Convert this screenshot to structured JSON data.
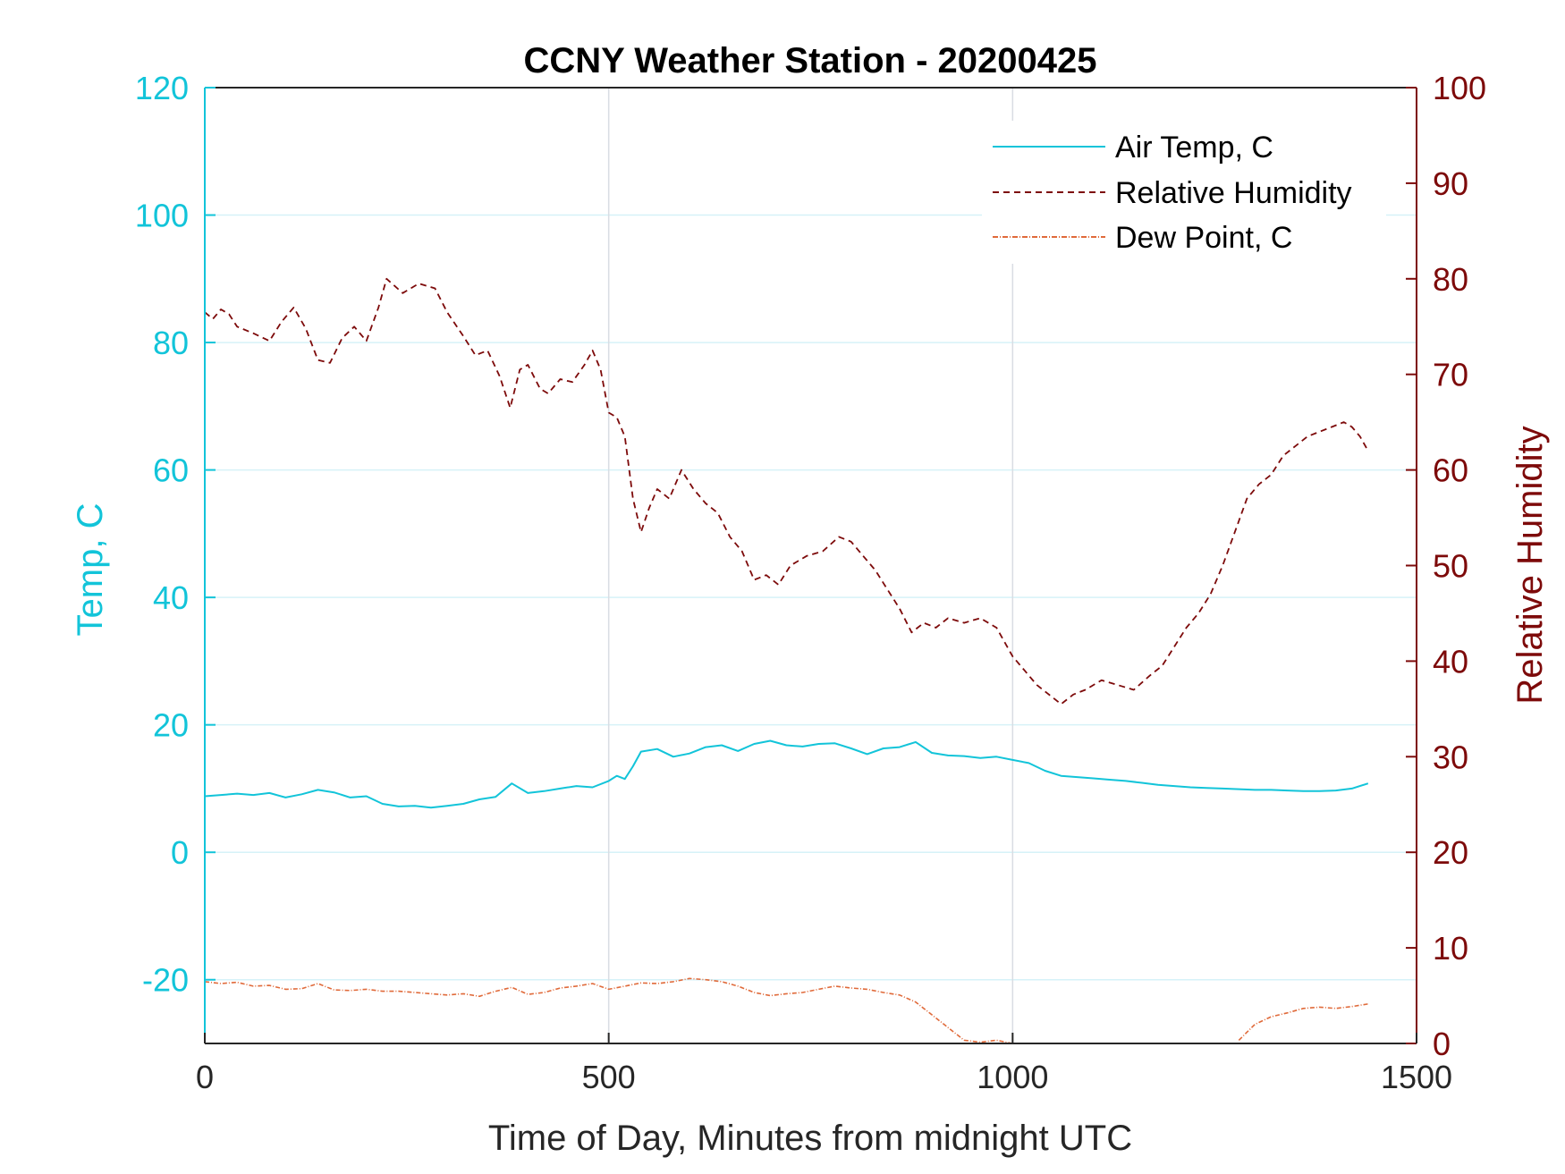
{
  "chart_data": {
    "type": "line",
    "title": "CCNY Weather Station - 20200425",
    "xlabel": "Time of Day, Minutes from midnight UTC",
    "ylabel_left": "Temp, C",
    "ylabel_right": "Relative Humidity",
    "xlim": [
      0,
      1500
    ],
    "ylim_left": [
      -30,
      120
    ],
    "ylim_right": [
      0,
      100
    ],
    "x_ticks": [
      "0",
      "500",
      "1000",
      "1500"
    ],
    "y_ticks_left": [
      "-20",
      "0",
      "20",
      "40",
      "60",
      "80",
      "100",
      "120"
    ],
    "y_ticks_right": [
      "0",
      "10",
      "20",
      "30",
      "40",
      "50",
      "60",
      "70",
      "80",
      "90",
      "100"
    ],
    "grid": true,
    "legend_position": "top-right",
    "colors": {
      "air_temp": "#12c4d9",
      "relative_humidity": "#7d0a0a",
      "dew_point": "#e06a3a",
      "left_axis": "#12c4d9",
      "right_axis": "#7d0a0a",
      "grid": "#cfe9f1"
    },
    "series": [
      {
        "name": "Air Temp, C",
        "axis": "left",
        "style": "solid",
        "x": [
          0,
          20,
          40,
          60,
          80,
          100,
          120,
          140,
          160,
          180,
          200,
          220,
          240,
          260,
          280,
          300,
          320,
          340,
          360,
          380,
          400,
          420,
          440,
          460,
          480,
          500,
          510,
          520,
          530,
          540,
          560,
          580,
          600,
          620,
          640,
          660,
          680,
          700,
          720,
          740,
          760,
          780,
          800,
          820,
          840,
          860,
          880,
          900,
          920,
          940,
          960,
          980,
          1000,
          1020,
          1040,
          1060,
          1080,
          1100,
          1120,
          1140,
          1160,
          1180,
          1200,
          1220,
          1240,
          1260,
          1280,
          1300,
          1320,
          1340,
          1360,
          1380,
          1400,
          1420,
          1440
        ],
        "values": [
          8.8,
          9.0,
          9.2,
          9.0,
          9.3,
          8.6,
          9.1,
          9.8,
          9.4,
          8.6,
          8.8,
          7.6,
          7.2,
          7.3,
          7.0,
          7.3,
          7.6,
          8.3,
          8.7,
          10.8,
          9.3,
          9.6,
          10.0,
          10.4,
          10.2,
          11.2,
          12.0,
          11.5,
          13.5,
          15.8,
          16.2,
          15.0,
          15.5,
          16.5,
          16.8,
          15.9,
          17.0,
          17.5,
          16.8,
          16.6,
          17.0,
          17.1,
          16.3,
          15.4,
          16.3,
          16.5,
          17.3,
          15.6,
          15.2,
          15.1,
          14.8,
          15.0,
          14.5,
          14.0,
          12.8,
          12.0,
          11.8,
          11.6,
          11.4,
          11.2,
          10.9,
          10.6,
          10.4,
          10.2,
          10.1,
          10.0,
          9.9,
          9.8,
          9.8,
          9.7,
          9.6,
          9.6,
          9.7,
          10.0,
          10.8
        ]
      },
      {
        "name": "Relative Humidity",
        "axis": "right",
        "style": "dashed",
        "x": [
          0,
          10,
          20,
          30,
          40,
          60,
          80,
          95,
          110,
          125,
          140,
          155,
          170,
          185,
          200,
          215,
          225,
          245,
          265,
          285,
          300,
          320,
          335,
          350,
          365,
          378,
          390,
          400,
          415,
          425,
          440,
          455,
          470,
          480,
          490,
          500,
          510,
          520,
          530,
          540,
          550,
          560,
          575,
          590,
          605,
          620,
          635,
          650,
          665,
          680,
          695,
          710,
          725,
          745,
          765,
          785,
          800,
          815,
          830,
          845,
          860,
          875,
          890,
          905,
          920,
          940,
          960,
          980,
          990,
          1000,
          1015,
          1030,
          1045,
          1060,
          1075,
          1090,
          1110,
          1130,
          1150,
          1170,
          1185,
          1200,
          1215,
          1230,
          1245,
          1260,
          1275,
          1290,
          1305,
          1320,
          1335,
          1350,
          1365,
          1380,
          1395,
          1410,
          1420,
          1430,
          1440
        ],
        "values": [
          76.5,
          75.8,
          76.8,
          76.3,
          75.0,
          74.3,
          73.5,
          75.5,
          77.0,
          74.8,
          71.5,
          71.2,
          73.8,
          75.0,
          73.5,
          77.0,
          80.0,
          78.5,
          79.5,
          79.0,
          76.5,
          74.0,
          72.0,
          72.5,
          69.8,
          66.5,
          70.5,
          71.0,
          68.5,
          68.0,
          69.5,
          69.2,
          71.0,
          72.5,
          70.5,
          66.0,
          65.5,
          63.5,
          57.0,
          53.5,
          56.0,
          58.0,
          57.0,
          60.0,
          58.0,
          56.5,
          55.5,
          53.0,
          51.5,
          48.5,
          49.0,
          48.0,
          50.0,
          51.0,
          51.5,
          53.0,
          52.5,
          51.0,
          49.5,
          47.5,
          45.5,
          43.0,
          44.0,
          43.5,
          44.5,
          44.0,
          44.5,
          43.5,
          42.0,
          40.5,
          39.0,
          37.5,
          36.5,
          35.5,
          36.5,
          37.0,
          38.0,
          37.5,
          37.0,
          38.5,
          39.5,
          41.5,
          43.5,
          45.0,
          47.0,
          50.0,
          53.5,
          57.0,
          58.5,
          59.5,
          61.5,
          62.5,
          63.5,
          64.0,
          64.5,
          65.0,
          64.5,
          63.5,
          62.0
        ]
      },
      {
        "name": "Dew Point, C",
        "axis": "left",
        "style": "dash-dot",
        "x": [
          0,
          20,
          40,
          60,
          80,
          100,
          120,
          140,
          160,
          180,
          200,
          220,
          240,
          260,
          280,
          300,
          320,
          340,
          360,
          380,
          400,
          420,
          440,
          460,
          480,
          500,
          520,
          540,
          560,
          580,
          600,
          620,
          640,
          660,
          680,
          700,
          720,
          740,
          760,
          780,
          800,
          820,
          840,
          860,
          880,
          900,
          920,
          940,
          960,
          980,
          1000,
          1020,
          1040,
          1060,
          1080,
          1100,
          1120,
          1140,
          1160,
          1180,
          1200,
          1220,
          1240,
          1260,
          1280,
          1300,
          1320,
          1340,
          1360,
          1380,
          1400,
          1420,
          1440
        ],
        "values": [
          -20.3,
          -20.6,
          -20.4,
          -21.0,
          -20.9,
          -21.5,
          -21.4,
          -20.6,
          -21.6,
          -21.7,
          -21.5,
          -21.8,
          -21.8,
          -22.0,
          -22.2,
          -22.4,
          -22.2,
          -22.6,
          -21.8,
          -21.2,
          -22.3,
          -22.0,
          -21.3,
          -21.0,
          -20.6,
          -21.5,
          -21.0,
          -20.5,
          -20.6,
          -20.3,
          -19.8,
          -20.0,
          -20.3,
          -21.0,
          -22.0,
          -22.5,
          -22.2,
          -22.0,
          -21.5,
          -21.0,
          -21.3,
          -21.5,
          -22.0,
          -22.4,
          -23.5,
          -25.5,
          -27.5,
          -29.5,
          -29.8,
          -29.5,
          -30.0,
          null,
          null,
          null,
          null,
          null,
          null,
          null,
          null,
          null,
          null,
          null,
          null,
          null,
          -29.5,
          -27.0,
          -25.8,
          -25.2,
          -24.5,
          -24.3,
          -24.5,
          -24.2,
          -23.8
        ]
      }
    ]
  }
}
